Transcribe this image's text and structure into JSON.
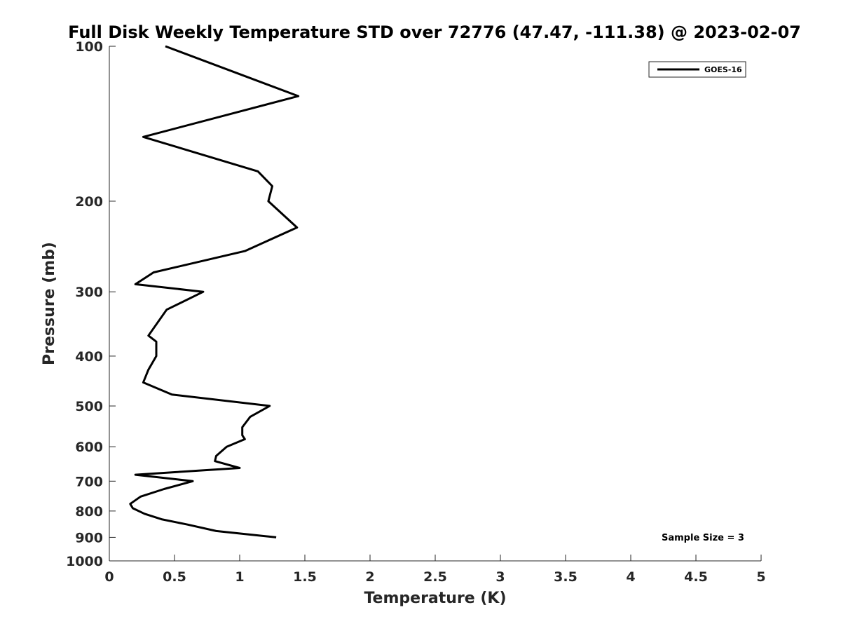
{
  "chart_data": {
    "type": "line",
    "title": "Full Disk Weekly Temperature STD over 72776 (47.47, -111.38) @ 2023-02-07",
    "xlabel": "Temperature (K)",
    "ylabel": "Pressure (mb)",
    "xlim": [
      0,
      5
    ],
    "ylim": [
      100,
      1000
    ],
    "y_scale": "log",
    "y_reversed": true,
    "x_ticks": [
      "0",
      "0.5",
      "1",
      "1.5",
      "2",
      "2.5",
      "3",
      "3.5",
      "4",
      "4.5",
      "5"
    ],
    "y_ticks": [
      "100",
      "200",
      "300",
      "400",
      "500",
      "600",
      "700",
      "800",
      "900",
      "1000"
    ],
    "grid": false,
    "legend": {
      "position": "top-right",
      "entries": [
        "GOES-16"
      ]
    },
    "series": [
      {
        "name": "GOES-16",
        "color": "#000000",
        "points": [
          {
            "x": 0.43,
            "p": 100
          },
          {
            "x": 1.45,
            "p": 125
          },
          {
            "x": 0.26,
            "p": 150
          },
          {
            "x": 1.14,
            "p": 175
          },
          {
            "x": 1.25,
            "p": 187
          },
          {
            "x": 1.22,
            "p": 200
          },
          {
            "x": 1.44,
            "p": 225
          },
          {
            "x": 1.04,
            "p": 250
          },
          {
            "x": 0.34,
            "p": 275
          },
          {
            "x": 0.2,
            "p": 290
          },
          {
            "x": 0.72,
            "p": 300
          },
          {
            "x": 0.44,
            "p": 325
          },
          {
            "x": 0.3,
            "p": 365
          },
          {
            "x": 0.36,
            "p": 375
          },
          {
            "x": 0.36,
            "p": 400
          },
          {
            "x": 0.3,
            "p": 425
          },
          {
            "x": 0.26,
            "p": 450
          },
          {
            "x": 0.48,
            "p": 475
          },
          {
            "x": 1.23,
            "p": 500
          },
          {
            "x": 1.08,
            "p": 525
          },
          {
            "x": 1.02,
            "p": 550
          },
          {
            "x": 1.02,
            "p": 570
          },
          {
            "x": 1.04,
            "p": 580
          },
          {
            "x": 0.9,
            "p": 600
          },
          {
            "x": 0.82,
            "p": 625
          },
          {
            "x": 0.81,
            "p": 640
          },
          {
            "x": 1.0,
            "p": 660
          },
          {
            "x": 0.2,
            "p": 680
          },
          {
            "x": 0.64,
            "p": 700
          },
          {
            "x": 0.42,
            "p": 725
          },
          {
            "x": 0.24,
            "p": 750
          },
          {
            "x": 0.16,
            "p": 775
          },
          {
            "x": 0.18,
            "p": 790
          },
          {
            "x": 0.27,
            "p": 810
          },
          {
            "x": 0.4,
            "p": 830
          },
          {
            "x": 0.6,
            "p": 850
          },
          {
            "x": 0.82,
            "p": 875
          },
          {
            "x": 1.28,
            "p": 900
          }
        ]
      }
    ],
    "annotation": "Sample Size = 3"
  }
}
